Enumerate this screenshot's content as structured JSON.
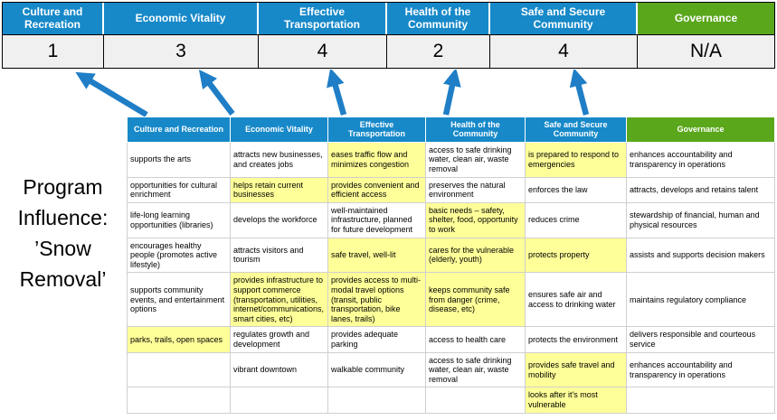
{
  "colors": {
    "header_blue": "#1789c9",
    "header_green": "#5ba71c",
    "highlight_yellow": "#ffff99",
    "arrow_blue": "#1f7ec6"
  },
  "title_lines": [
    "Program",
    "Influence:",
    "’Snow",
    "Removal’"
  ],
  "pillars": [
    {
      "label": "Culture and Recreation",
      "score": "1"
    },
    {
      "label": "Economic Vitality",
      "score": "3"
    },
    {
      "label": "Effective Transportation",
      "score": "4"
    },
    {
      "label": "Health of the Community",
      "score": "2"
    },
    {
      "label": "Safe and Secure Community",
      "score": "4"
    },
    {
      "label": "Governance",
      "score": "N/A"
    }
  ],
  "matrix": {
    "headers": [
      "Culture and Recreation",
      "Economic Vitality",
      "Effective Transportation",
      "Health of the Community",
      "Safe and Secure Community",
      "Governance"
    ],
    "rows": [
      [
        {
          "text": "supports the arts",
          "highlight": false
        },
        {
          "text": "attracts new businesses, and creates jobs",
          "highlight": false
        },
        {
          "text": "eases traffic flow and minimizes congestion",
          "highlight": true
        },
        {
          "text": "access to safe drinking water, clean air, waste removal",
          "highlight": false
        },
        {
          "text": "is prepared to respond to emergencies",
          "highlight": true
        },
        {
          "text": "enhances accountability and transparency in operations",
          "highlight": false
        }
      ],
      [
        {
          "text": "opportunities for cultural enrichment",
          "highlight": false
        },
        {
          "text": "helps retain current businesses",
          "highlight": true
        },
        {
          "text": "provides convenient and efficient access",
          "highlight": true
        },
        {
          "text": "preserves the natural environment",
          "highlight": false
        },
        {
          "text": "enforces the law",
          "highlight": false
        },
        {
          "text": "attracts, develops and retains talent",
          "highlight": false
        }
      ],
      [
        {
          "text": "life-long learning opportunities (libraries)",
          "highlight": false
        },
        {
          "text": "develops the workforce",
          "highlight": false
        },
        {
          "text": "well-maintained infrastructure, planned for future development",
          "highlight": false
        },
        {
          "text": "basic needs – safety, shelter, food, opportunity to work",
          "highlight": true
        },
        {
          "text": "reduces crime",
          "highlight": false
        },
        {
          "text": "stewardship of financial, human and physical resources",
          "highlight": false
        }
      ],
      [
        {
          "text": "encourages healthy people (promotes active lifestyle)",
          "highlight": false
        },
        {
          "text": "attracts visitors and tourism",
          "highlight": false
        },
        {
          "text": "safe travel, well-lit",
          "highlight": true
        },
        {
          "text": "cares for the vulnerable (elderly, youth)",
          "highlight": true
        },
        {
          "text": "protects property",
          "highlight": true
        },
        {
          "text": "assists and supports decision makers",
          "highlight": false
        }
      ],
      [
        {
          "text": "supports community events, and entertainment options",
          "highlight": false
        },
        {
          "text": "provides infrastructure to support commerce (transportation, utilities, internet/communications, smart cities, etc)",
          "highlight": true
        },
        {
          "text": "provides access to multi-modal travel options (transit, public transportation, bike lanes, trails)",
          "highlight": true
        },
        {
          "text": "keeps community safe from danger (crime, disease, etc)",
          "highlight": true
        },
        {
          "text": "ensures safe air and access to drinking water",
          "highlight": false
        },
        {
          "text": "maintains regulatory compliance",
          "highlight": false
        }
      ],
      [
        {
          "text": "parks, trails, open spaces",
          "highlight": true
        },
        {
          "text": "regulates growth and development",
          "highlight": false
        },
        {
          "text": "provides adequate parking",
          "highlight": false
        },
        {
          "text": "access to health care",
          "highlight": false
        },
        {
          "text": "protects the environment",
          "highlight": false
        },
        {
          "text": "delivers responsible and courteous service",
          "highlight": false
        }
      ],
      [
        {
          "text": "",
          "highlight": false
        },
        {
          "text": "vibrant downtown",
          "highlight": false
        },
        {
          "text": "walkable community",
          "highlight": false
        },
        {
          "text": "access to safe drinking water, clean air, waste removal",
          "highlight": false
        },
        {
          "text": "provides safe travel and mobility",
          "highlight": true
        },
        {
          "text": "enhances accountability and transparency in operations",
          "highlight": false
        }
      ],
      [
        {
          "text": "",
          "highlight": false
        },
        {
          "text": "",
          "highlight": false
        },
        {
          "text": "",
          "highlight": false
        },
        {
          "text": "",
          "highlight": false
        },
        {
          "text": "looks after it's most vulnerable",
          "highlight": true
        },
        {
          "text": "",
          "highlight": false
        }
      ]
    ]
  }
}
